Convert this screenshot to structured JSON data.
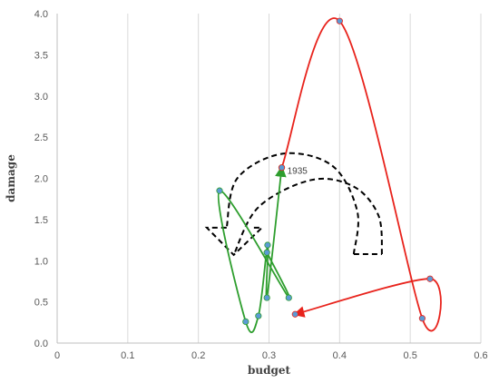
{
  "chart_data": {
    "type": "scatter",
    "title": "",
    "xlabel": "budget",
    "ylabel": "damage",
    "xlim": [
      0,
      0.6
    ],
    "ylim": [
      0,
      4.0
    ],
    "x_ticks": [
      0,
      0.1,
      0.2,
      0.3,
      0.4,
      0.5,
      0.6
    ],
    "y_ticks": [
      0.0,
      0.5,
      1.0,
      1.5,
      2.0,
      2.5,
      3.0,
      3.5,
      4.0
    ],
    "x_tick_labels": [
      "0",
      "0.1",
      "0.2",
      "0.3",
      "0.4",
      "0.5",
      "0.6"
    ],
    "y_tick_labels": [
      "0.0",
      "0.5",
      "1.0",
      "1.5",
      "2.0",
      "2.5",
      "3.0",
      "3.5",
      "4.0"
    ],
    "grid": "vertical",
    "legend": "none",
    "annotation": {
      "text": "1935",
      "x": 0.322,
      "y": 2.1
    },
    "series": [
      {
        "color": "#2e9e2e",
        "points": [
          {
            "x": 0.297,
            "y": 1.1
          },
          {
            "x": 0.328,
            "y": 0.55
          },
          {
            "x": 0.23,
            "y": 1.85
          },
          {
            "x": 0.267,
            "y": 0.26
          },
          {
            "x": 0.285,
            "y": 0.33
          },
          {
            "x": 0.298,
            "y": 1.19
          },
          {
            "x": 0.297,
            "y": 0.55
          },
          {
            "x": 0.318,
            "y": 2.13
          }
        ]
      },
      {
        "color": "#e8231c",
        "points": [
          {
            "x": 0.318,
            "y": 2.13
          },
          {
            "x": 0.4,
            "y": 3.91
          },
          {
            "x": 0.517,
            "y": 0.3
          },
          {
            "x": 0.528,
            "y": 0.78
          },
          {
            "x": 0.337,
            "y": 0.35
          }
        ]
      }
    ],
    "dashed_arrow": {
      "color": "#000000",
      "outer": [
        [
          0.42,
          1.08
        ],
        [
          0.425,
          1.6
        ],
        [
          0.39,
          2.15
        ],
        [
          0.32,
          2.3
        ],
        [
          0.255,
          2.0
        ],
        [
          0.24,
          1.4
        ]
      ],
      "inner": [
        [
          0.46,
          1.08
        ],
        [
          0.455,
          1.55
        ],
        [
          0.42,
          1.9
        ],
        [
          0.36,
          1.98
        ],
        [
          0.285,
          1.65
        ],
        [
          0.25,
          1.07
        ]
      ],
      "head": [
        [
          0.24,
          1.4
        ],
        [
          0.212,
          1.4
        ],
        [
          0.25,
          1.07
        ],
        [
          0.29,
          1.4
        ],
        [
          0.275,
          1.4
        ]
      ],
      "tail": [
        [
          0.42,
          1.08
        ],
        [
          0.46,
          1.08
        ]
      ]
    }
  }
}
